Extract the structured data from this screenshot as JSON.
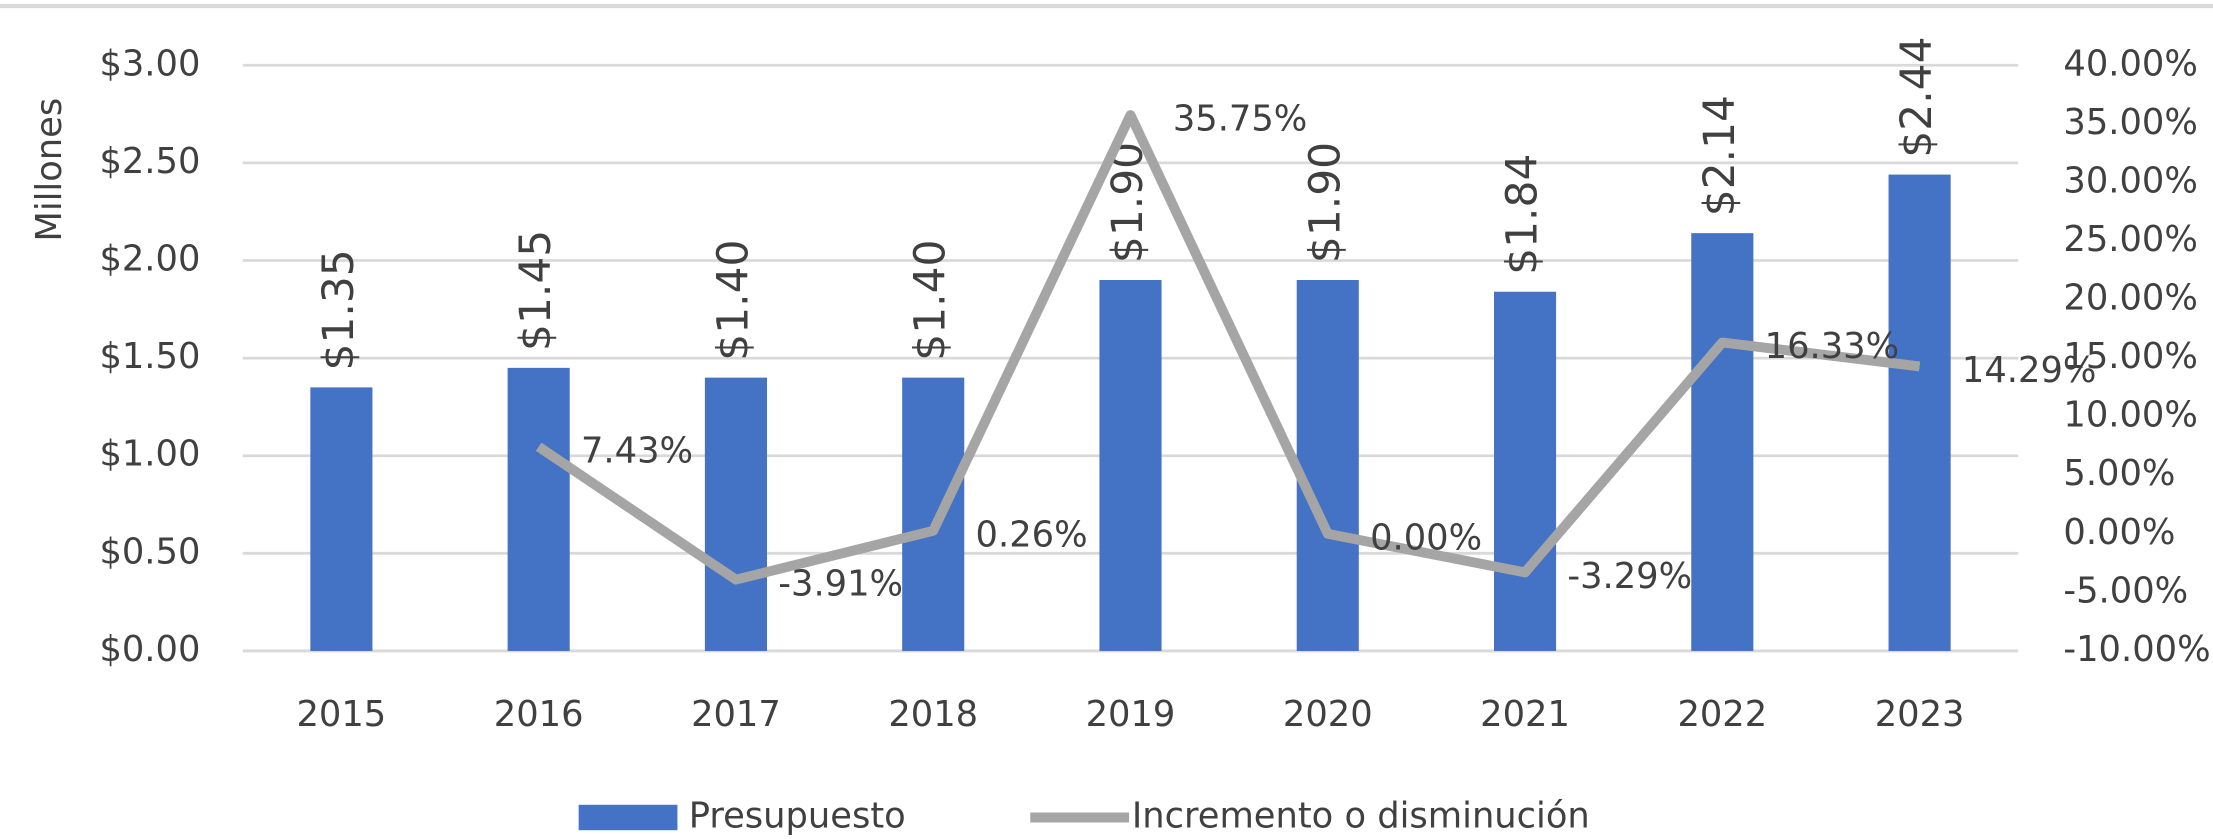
{
  "chart_data": {
    "type": "bar",
    "y_label": "Millones",
    "categories": [
      "2015",
      "2016",
      "2017",
      "2018",
      "2019",
      "2020",
      "2021",
      "2022",
      "2023"
    ],
    "series": [
      {
        "name": "Presupuesto",
        "type": "bar",
        "color": "#4472c4",
        "values": [
          1.35,
          1.45,
          1.4,
          1.4,
          1.9,
          1.9,
          1.84,
          2.14,
          2.44
        ],
        "value_labels": [
          "$1.35",
          "$1.45",
          "$1.40",
          "$1.40",
          "$1.90",
          "$1.90",
          "$1.84",
          "$2.14",
          "$2.44"
        ]
      },
      {
        "name": "Incremento o disminución",
        "type": "line",
        "color": "#a5a5a5",
        "axis": "y2",
        "values": [
          null,
          7.43,
          -3.91,
          0.26,
          35.75,
          0.0,
          -3.29,
          16.33,
          14.29
        ],
        "value_labels": [
          null,
          "7.43%",
          "-3.91%",
          "0.26%",
          "35.75%",
          "0.00%",
          "-3.29%",
          "16.33%",
          "14.29%"
        ]
      }
    ],
    "ylim": [
      0,
      3
    ],
    "yticks": [
      {
        "value": 0,
        "label": "$0.00"
      },
      {
        "value": 0.5,
        "label": "$0.50"
      },
      {
        "value": 1,
        "label": "$1.00"
      },
      {
        "value": 1.5,
        "label": "$1.50"
      },
      {
        "value": 2,
        "label": "$2.00"
      },
      {
        "value": 2.5,
        "label": "$2.50"
      },
      {
        "value": 3,
        "label": "$3.00"
      }
    ],
    "y2lim": [
      -10,
      40
    ],
    "y2ticks": [
      {
        "value": -10,
        "label": "-10.00%"
      },
      {
        "value": -5,
        "label": "-5.00%"
      },
      {
        "value": 0,
        "label": "0.00%"
      },
      {
        "value": 5,
        "label": "5.00%"
      },
      {
        "value": 10,
        "label": "10.00%"
      },
      {
        "value": 15,
        "label": "15.00%"
      },
      {
        "value": 20,
        "label": "20.00%"
      },
      {
        "value": 25,
        "label": "25.00%"
      },
      {
        "value": 30,
        "label": "30.00%"
      },
      {
        "value": 35,
        "label": "35.00%"
      },
      {
        "value": 40,
        "label": "40.00%"
      }
    ],
    "grid": true,
    "legend": "bottom"
  }
}
